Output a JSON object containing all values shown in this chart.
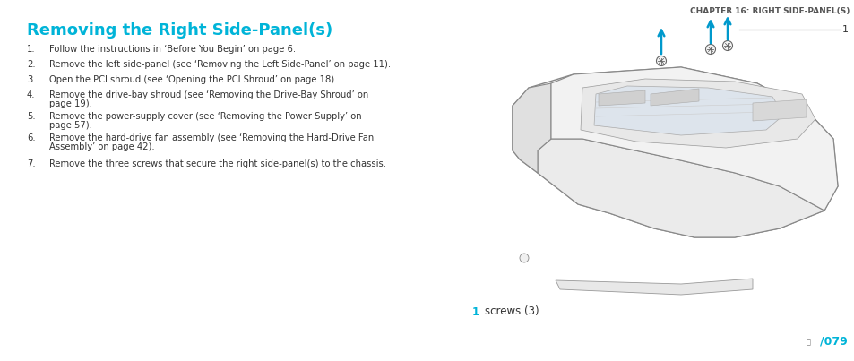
{
  "title": "Removing the Right Side-Panel(s)",
  "chapter_header": "CHAPTER 16: RIGHT SIDE-PANEL(S)",
  "title_color": "#00b4d8",
  "title_fontsize": 13,
  "chapter_fontsize": 6.5,
  "body_fontsize": 7.2,
  "steps": [
    "Follow the instructions in ‘Before You Begin’ on page 6.",
    "Remove the left side-panel (see ‘Removing the Left Side-Panel’ on page 11).",
    "Open the PCI shroud (see ‘Opening the PCI Shroud’ on page 18).",
    "Remove the drive-bay shroud (see ‘Removing the Drive-Bay Shroud’ on page 19).",
    "Remove the power-supply cover (see ‘Removing the Power Supply’ on page 57).",
    "Remove the hard-drive fan assembly (see ‘Removing the Hard-Drive Fan Assembly’ on page 42).",
    "Remove the three screws that secure the right side-panel(s) to the chassis."
  ],
  "steps_wrapped": [
    [
      "Follow the instructions in ‘Before You Begin’ on page 6."
    ],
    [
      "Remove the left side-panel (see ‘Removing the Left Side-Panel’ on page 11)."
    ],
    [
      "Open the PCI shroud (see ‘Opening the PCI Shroud’ on page 18)."
    ],
    [
      "Remove the drive-bay shroud (see ‘Removing the Drive-Bay Shroud’ on",
      "page 19)."
    ],
    [
      "Remove the power-supply cover (see ‘Removing the Power Supply’ on",
      "page 57)."
    ],
    [
      "Remove the hard-drive fan assembly (see ‘Removing the Hard-Drive Fan",
      "Assembly’ on page 42)."
    ],
    [
      "Remove the three screws that secure the right side-panel(s) to the chassis."
    ]
  ],
  "label_number": "1",
  "label_text": "screws (3)",
  "label_color": "#00b4d8",
  "page_number": "079",
  "arrow_color": "#0099cc",
  "callout_line_color": "#aaaaaa",
  "background_color": "#ffffff",
  "text_color": "#333333",
  "chapter_color": "#555555"
}
